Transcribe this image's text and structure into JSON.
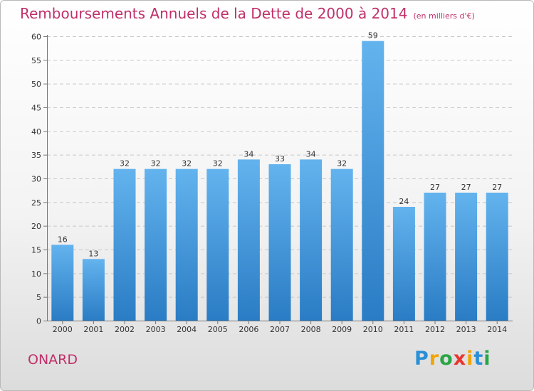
{
  "chart_data": {
    "type": "bar",
    "title": "Remboursements Annuels de la Dette de 2000 à 2014",
    "subtitle": "(en milliers d'€)",
    "categories": [
      "2000",
      "2001",
      "2002",
      "2003",
      "2004",
      "2005",
      "2006",
      "2007",
      "2008",
      "2009",
      "2010",
      "2011",
      "2012",
      "2013",
      "2014"
    ],
    "values": [
      16,
      13,
      32,
      32,
      32,
      32,
      34,
      33,
      34,
      32,
      59,
      24,
      27,
      27,
      27
    ],
    "ylim": [
      0,
      60
    ],
    "yticks": [
      0,
      5,
      10,
      15,
      20,
      25,
      30,
      35,
      40,
      45,
      50,
      55,
      60
    ],
    "grid": true,
    "xlabel": "",
    "ylabel": "",
    "colors": {
      "bar_light": "#63b3ee",
      "bar_dark": "#2a7cc4",
      "title": "#c0306a"
    }
  },
  "footer": {
    "place": "ONARD",
    "logo": "Proxiti"
  },
  "logo_colors": [
    "#2a8fd6",
    "#f0a500",
    "#27a645",
    "#e8352e",
    "#f0a500",
    "#2a8fd6",
    "#27a645"
  ]
}
